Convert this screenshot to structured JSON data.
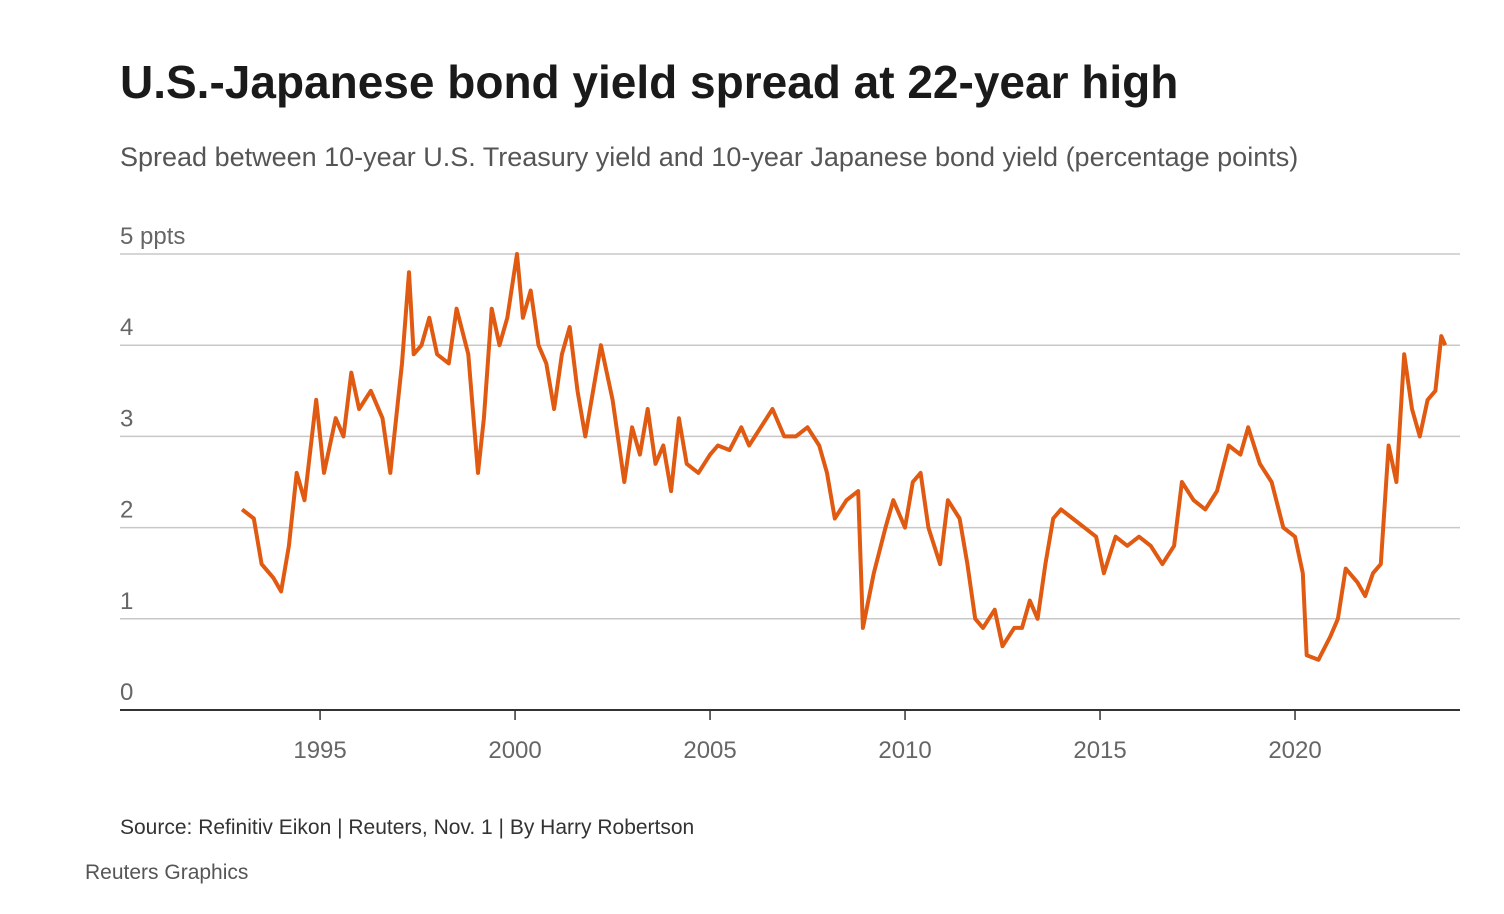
{
  "chart_data": {
    "type": "line",
    "title": "U.S.-Japanese bond yield spread at 22-year high",
    "subtitle": "Spread between 10-year U.S. Treasury yield and 10-year Japanese bond yield (percentage points)",
    "source": "Source: Refinitiv Eikon | Reuters, Nov. 1 | By Harry Robertson",
    "credit": "Reuters Graphics",
    "x": [
      1993.0,
      1993.3,
      1993.5,
      1993.8,
      1994.0,
      1994.2,
      1994.4,
      1994.6,
      1994.9,
      1995.1,
      1995.4,
      1995.6,
      1995.8,
      1996.0,
      1996.3,
      1996.6,
      1996.8,
      1997.0,
      1997.1,
      1997.28,
      1997.4,
      1997.6,
      1997.8,
      1998.0,
      1998.3,
      1998.5,
      1998.8,
      1999.05,
      1999.2,
      1999.4,
      1999.6,
      1999.8,
      2000.05,
      2000.2,
      2000.4,
      2000.6,
      2000.8,
      2001.0,
      2001.2,
      2001.4,
      2001.6,
      2001.8,
      2002.0,
      2002.2,
      2002.5,
      2002.8,
      2003.0,
      2003.2,
      2003.4,
      2003.6,
      2003.8,
      2004.0,
      2004.2,
      2004.4,
      2004.7,
      2005.0,
      2005.2,
      2005.5,
      2005.8,
      2006.0,
      2006.3,
      2006.6,
      2006.9,
      2007.2,
      2007.5,
      2007.8,
      2008.0,
      2008.2,
      2008.5,
      2008.8,
      2008.92,
      2009.2,
      2009.5,
      2009.7,
      2010.0,
      2010.2,
      2010.4,
      2010.6,
      2010.9,
      2011.1,
      2011.4,
      2011.6,
      2011.8,
      2012.0,
      2012.3,
      2012.5,
      2012.8,
      2013.0,
      2013.2,
      2013.4,
      2013.6,
      2013.8,
      2014.0,
      2014.3,
      2014.6,
      2014.9,
      2015.1,
      2015.4,
      2015.7,
      2016.0,
      2016.3,
      2016.6,
      2016.9,
      2017.1,
      2017.4,
      2017.7,
      2018.0,
      2018.3,
      2018.6,
      2018.8,
      2019.1,
      2019.4,
      2019.7,
      2020.0,
      2020.2,
      2020.3,
      2020.6,
      2020.9,
      2021.1,
      2021.3,
      2021.6,
      2021.8,
      2022.0,
      2022.2,
      2022.4,
      2022.6,
      2022.8,
      2023.0,
      2023.2,
      2023.4,
      2023.6,
      2023.75,
      2023.85
    ],
    "series": [
      {
        "name": "Spread",
        "color": "#e05a12",
        "values": [
          2.2,
          2.1,
          1.6,
          1.45,
          1.3,
          1.8,
          2.6,
          2.3,
          3.4,
          2.6,
          3.2,
          3.0,
          3.7,
          3.3,
          3.5,
          3.2,
          2.6,
          3.4,
          3.8,
          4.8,
          3.9,
          4.0,
          4.3,
          3.9,
          3.8,
          4.4,
          3.9,
          2.6,
          3.2,
          4.4,
          4.0,
          4.3,
          5.0,
          4.3,
          4.6,
          4.0,
          3.8,
          3.3,
          3.9,
          4.2,
          3.5,
          3.0,
          3.5,
          4.0,
          3.4,
          2.5,
          3.1,
          2.8,
          3.3,
          2.7,
          2.9,
          2.4,
          3.2,
          2.7,
          2.6,
          2.8,
          2.9,
          2.85,
          3.1,
          2.9,
          3.1,
          3.3,
          3.0,
          3.0,
          3.1,
          2.9,
          2.6,
          2.1,
          2.3,
          2.4,
          0.9,
          1.5,
          2.0,
          2.3,
          2.0,
          2.5,
          2.6,
          2.0,
          1.6,
          2.3,
          2.1,
          1.6,
          1.0,
          0.9,
          1.1,
          0.7,
          0.9,
          0.9,
          1.2,
          1.0,
          1.6,
          2.1,
          2.2,
          2.1,
          2.0,
          1.9,
          1.5,
          1.9,
          1.8,
          1.9,
          1.8,
          1.6,
          1.8,
          2.5,
          2.3,
          2.2,
          2.4,
          2.9,
          2.8,
          3.1,
          2.7,
          2.5,
          2.0,
          1.9,
          1.5,
          0.6,
          0.55,
          0.8,
          1.0,
          1.55,
          1.4,
          1.25,
          1.5,
          1.6,
          2.9,
          2.5,
          3.9,
          3.3,
          3.0,
          3.4,
          3.5,
          4.1,
          4.0
        ]
      }
    ],
    "xlim": [
      1989.87,
      2024.23
    ],
    "xticks": [
      1995,
      2000,
      2005,
      2010,
      2015,
      2020
    ],
    "ylim": [
      0,
      5
    ],
    "yticks": [
      0,
      1,
      2,
      3,
      4,
      {
        "value": 5,
        "label": "5 ppts"
      }
    ],
    "grid": true
  }
}
